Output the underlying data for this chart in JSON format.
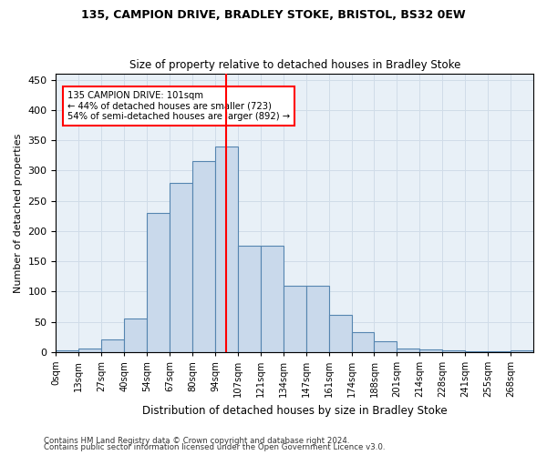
{
  "title1": "135, CAMPION DRIVE, BRADLEY STOKE, BRISTOL, BS32 0EW",
  "title2": "Size of property relative to detached houses in Bradley Stoke",
  "xlabel": "Distribution of detached houses by size in Bradley Stoke",
  "ylabel": "Number of detached properties",
  "bin_labels": [
    "0sqm",
    "13sqm",
    "27sqm",
    "40sqm",
    "54sqm",
    "67sqm",
    "80sqm",
    "94sqm",
    "107sqm",
    "121sqm",
    "134sqm",
    "147sqm",
    "161sqm",
    "174sqm",
    "188sqm",
    "201sqm",
    "214sqm",
    "228sqm",
    "241sqm",
    "255sqm",
    "268sqm"
  ],
  "bar_heights": [
    2,
    5,
    20,
    55,
    230,
    280,
    315,
    340,
    175,
    175,
    110,
    110,
    62,
    32,
    17,
    6,
    4,
    2,
    1,
    1,
    2
  ],
  "bar_color": "#c9d9eb",
  "bar_edgecolor": "#5585b0",
  "ref_line_index": 7.5,
  "ref_line_color": "red",
  "annotation_text": "135 CAMPION DRIVE: 101sqm\n← 44% of detached houses are smaller (723)\n54% of semi-detached houses are larger (892) →",
  "annotation_box_color": "white",
  "annotation_box_edgecolor": "red",
  "grid_color": "#d0dce8",
  "background_color": "#e8f0f7",
  "ylim": [
    0,
    460
  ],
  "yticks": [
    0,
    50,
    100,
    150,
    200,
    250,
    300,
    350,
    400,
    450
  ],
  "footer1": "Contains HM Land Registry data © Crown copyright and database right 2024.",
  "footer2": "Contains public sector information licensed under the Open Government Licence v3.0."
}
